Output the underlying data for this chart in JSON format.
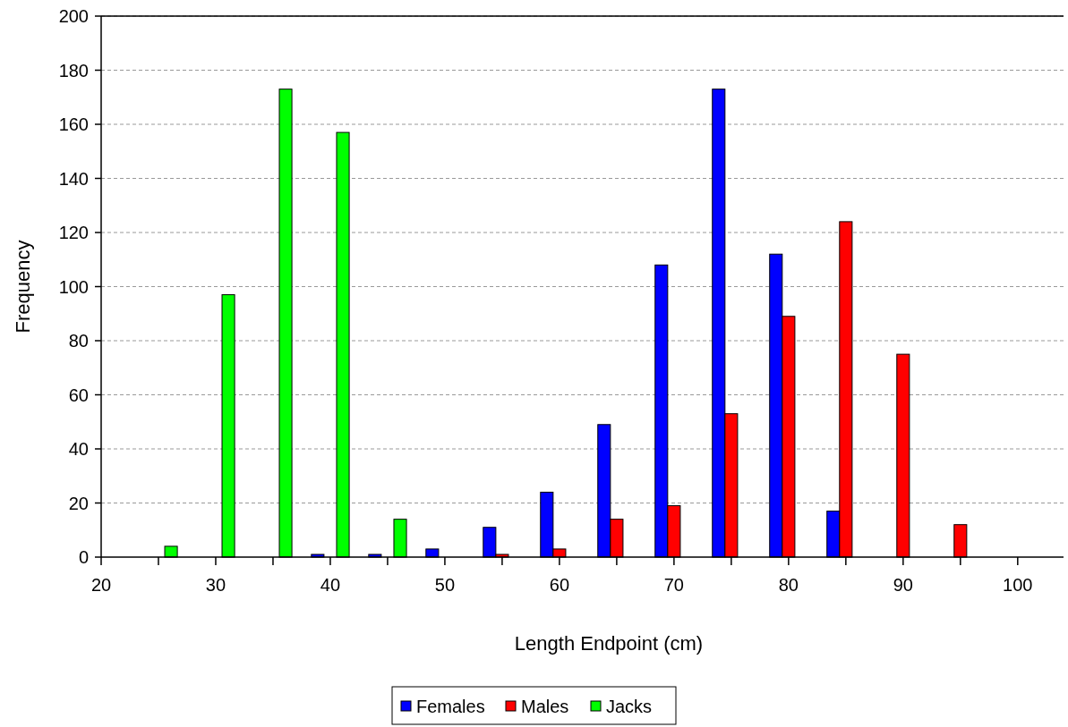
{
  "chart_data": {
    "type": "bar",
    "xlabel": "Length Endpoint (cm)",
    "ylabel": "Frequency",
    "x": [
      25,
      30,
      35,
      40,
      45,
      50,
      55,
      60,
      65,
      70,
      75,
      80,
      85,
      90,
      95
    ],
    "series": [
      {
        "name": "Females",
        "color": "#0000ff",
        "values": [
          null,
          null,
          null,
          1,
          1,
          3,
          11,
          24,
          49,
          108,
          173,
          112,
          17,
          null,
          null
        ]
      },
      {
        "name": "Males",
        "color": "#ff0000",
        "values": [
          null,
          null,
          null,
          null,
          null,
          null,
          1,
          3,
          14,
          19,
          53,
          89,
          124,
          75,
          12
        ]
      },
      {
        "name": "Jacks",
        "color": "#00ff00",
        "values": [
          4,
          97,
          173,
          157,
          14,
          null,
          null,
          null,
          null,
          null,
          null,
          null,
          null,
          null,
          null
        ]
      }
    ],
    "xlim": [
      20,
      104
    ],
    "xticks": [
      20,
      {
        "value": 25,
        "label": null
      },
      30,
      {
        "value": 35,
        "label": null
      },
      40,
      {
        "value": 45,
        "label": null
      },
      50,
      {
        "value": 55,
        "label": null
      },
      60,
      {
        "value": 65,
        "label": null
      },
      70,
      {
        "value": 75,
        "label": null
      },
      80,
      {
        "value": 85,
        "label": null
      },
      90,
      {
        "value": 95,
        "label": null
      },
      100
    ],
    "ylim": [
      0,
      200
    ],
    "yticks": [
      0,
      20,
      40,
      60,
      80,
      100,
      120,
      140,
      160,
      180,
      200
    ],
    "grid": "y",
    "legend": "bottom"
  }
}
